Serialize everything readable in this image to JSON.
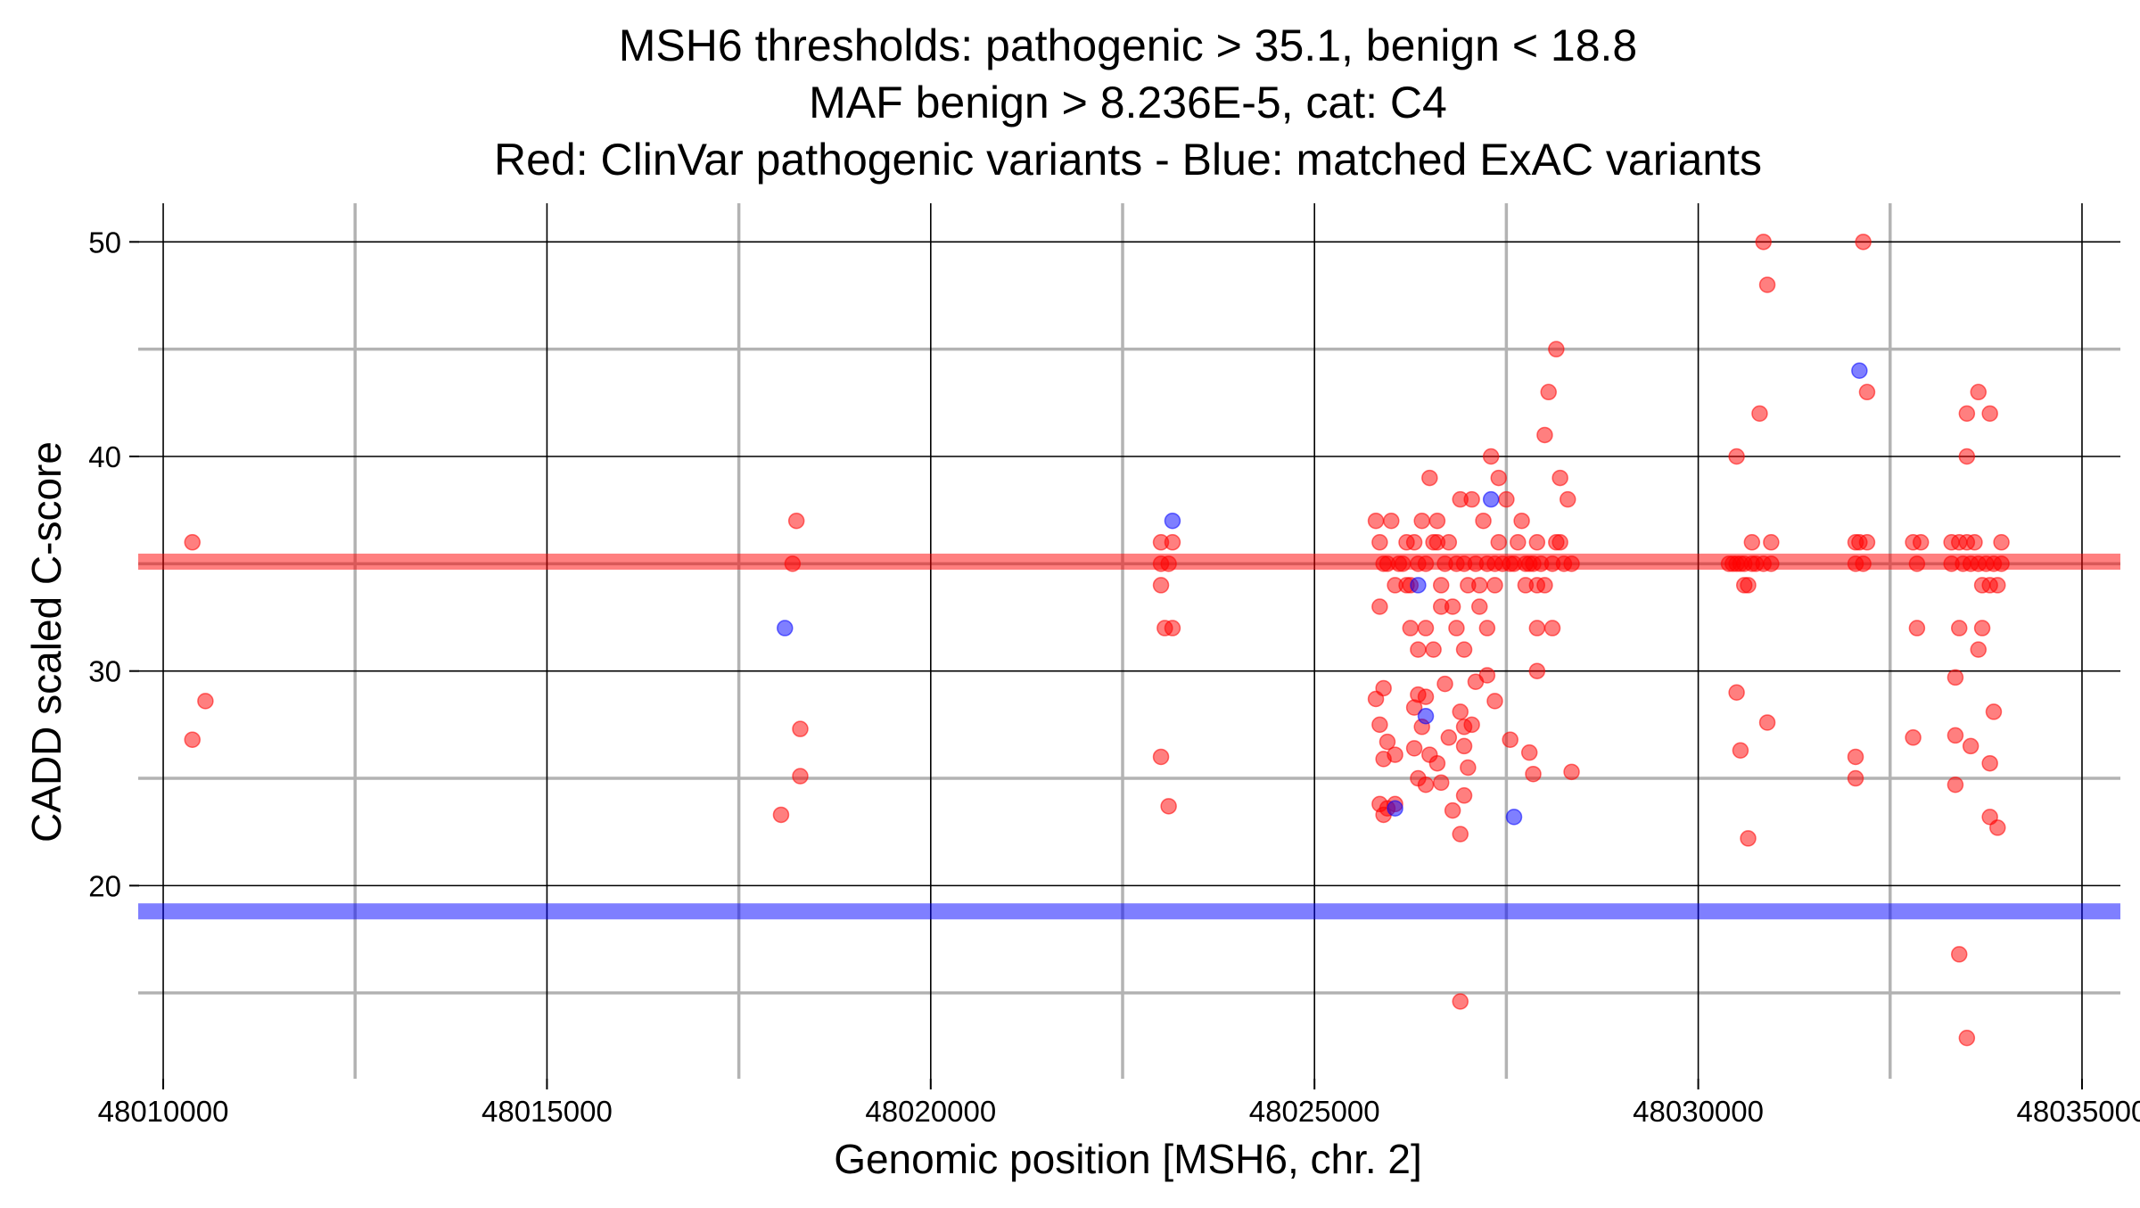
{
  "chart_data": {
    "type": "scatter",
    "title_lines": [
      "MSH6 thresholds: pathogenic > 35.1, benign < 18.8",
      "MAF benign > 8.236E-5, cat: C4",
      "Red: ClinVar pathogenic variants - Blue: matched ExAC variants"
    ],
    "xlabel": "Genomic position [MSH6, chr. 2]",
    "ylabel": "CADD scaled C-score",
    "xlim": [
      48009500,
      48035500
    ],
    "ylim": [
      11.0,
      51.8
    ],
    "x_ticks": [
      48010000,
      48015000,
      48020000,
      48025000,
      48030000,
      48035000
    ],
    "x_tick_labels": [
      "48010000",
      "48015000",
      "48020000",
      "48025000",
      "48030000",
      "48035000"
    ],
    "x_minor_ticks": [
      48012500,
      48017500,
      48022500,
      48027500,
      48032500
    ],
    "y_ticks": [
      20,
      30,
      40,
      50
    ],
    "y_tick_labels": [
      "20",
      "30",
      "40",
      "50"
    ],
    "y_minor_ticks": [
      15,
      25,
      35,
      45
    ],
    "grid": true,
    "thresholds": [
      {
        "name": "pathogenic",
        "value": 35.1,
        "color": "#ff0000"
      },
      {
        "name": "benign",
        "value": 18.8,
        "color": "#0000ff"
      }
    ],
    "colors": {
      "pathogenic": "#ff0000",
      "benign": "#0000ff",
      "major_grid": "#000000",
      "minor_grid": "#b3b3b3"
    },
    "series": [
      {
        "color": "#ff0000",
        "points": [
          [
            48010380,
            36
          ],
          [
            48010380,
            26.8
          ],
          [
            48010550,
            28.6
          ],
          [
            48018050,
            23.3
          ],
          [
            48018250,
            37
          ],
          [
            48018200,
            35
          ],
          [
            48018300,
            27.3
          ],
          [
            48018300,
            25.1
          ],
          [
            48023000,
            36
          ],
          [
            48023000,
            34
          ],
          [
            48023000,
            26
          ],
          [
            48023050,
            32
          ],
          [
            48023100,
            35
          ],
          [
            48023150,
            36
          ],
          [
            48023150,
            32
          ],
          [
            48023100,
            23.7
          ],
          [
            48023000,
            35
          ],
          [
            48025800,
            37
          ],
          [
            48025850,
            36
          ],
          [
            48025900,
            35
          ],
          [
            48025950,
            35
          ],
          [
            48026000,
            37
          ],
          [
            48026100,
            35
          ],
          [
            48026200,
            34
          ],
          [
            48026250,
            34
          ],
          [
            48026300,
            36
          ],
          [
            48026350,
            35
          ],
          [
            48026400,
            37
          ],
          [
            48026450,
            35
          ],
          [
            48026500,
            39
          ],
          [
            48026550,
            36
          ],
          [
            48026600,
            37
          ],
          [
            48026650,
            34
          ],
          [
            48026700,
            35
          ],
          [
            48026750,
            36
          ],
          [
            48026800,
            33
          ],
          [
            48026850,
            35
          ],
          [
            48026900,
            38
          ],
          [
            48026950,
            35
          ],
          [
            48027000,
            34
          ],
          [
            48027050,
            38
          ],
          [
            48027100,
            35
          ],
          [
            48027150,
            34
          ],
          [
            48027200,
            37
          ],
          [
            48027250,
            35
          ],
          [
            48027300,
            40
          ],
          [
            48027350,
            35
          ],
          [
            48027400,
            39
          ],
          [
            48027450,
            35
          ],
          [
            48027500,
            38
          ],
          [
            48027550,
            35
          ],
          [
            48027600,
            35
          ],
          [
            48027650,
            36
          ],
          [
            48027700,
            37
          ],
          [
            48027750,
            35
          ],
          [
            48027800,
            35
          ],
          [
            48027850,
            35
          ],
          [
            48027900,
            34
          ],
          [
            48027950,
            35
          ],
          [
            48028000,
            41
          ],
          [
            48028050,
            43
          ],
          [
            48028100,
            35
          ],
          [
            48028150,
            45
          ],
          [
            48028200,
            39
          ],
          [
            48028250,
            35
          ],
          [
            48028300,
            38
          ],
          [
            48028350,
            35
          ],
          [
            48025850,
            33
          ],
          [
            48026050,
            34
          ],
          [
            48026250,
            32
          ],
          [
            48026350,
            31
          ],
          [
            48026450,
            32
          ],
          [
            48026550,
            31
          ],
          [
            48026650,
            33
          ],
          [
            48026850,
            32
          ],
          [
            48026950,
            31
          ],
          [
            48027150,
            33
          ],
          [
            48027250,
            32
          ],
          [
            48027350,
            34
          ],
          [
            48027750,
            34
          ],
          [
            48027900,
            32
          ],
          [
            48028100,
            32
          ],
          [
            48028000,
            34
          ],
          [
            48027900,
            36
          ],
          [
            48026200,
            36
          ],
          [
            48026600,
            36
          ],
          [
            48027400,
            36
          ],
          [
            48028150,
            36
          ],
          [
            48028200,
            36
          ],
          [
            48026150,
            35
          ],
          [
            48025800,
            28.7
          ],
          [
            48025900,
            29.2
          ],
          [
            48025850,
            27.5
          ],
          [
            48025950,
            26.7
          ],
          [
            48025900,
            25.9
          ],
          [
            48026050,
            26.1
          ],
          [
            48025850,
            23.8
          ],
          [
            48025950,
            23.6
          ],
          [
            48025900,
            23.3
          ],
          [
            48026050,
            23.8
          ],
          [
            48026300,
            26.4
          ],
          [
            48026300,
            28.3
          ],
          [
            48026350,
            28.9
          ],
          [
            48026400,
            27.4
          ],
          [
            48026450,
            28.8
          ],
          [
            48026350,
            25
          ],
          [
            48026450,
            24.7
          ],
          [
            48026500,
            26.1
          ],
          [
            48026600,
            25.7
          ],
          [
            48026650,
            24.8
          ],
          [
            48026700,
            29.4
          ],
          [
            48026750,
            26.9
          ],
          [
            48026800,
            23.5
          ],
          [
            48026900,
            28.1
          ],
          [
            48026950,
            27.4
          ],
          [
            48026950,
            26.5
          ],
          [
            48027000,
            25.5
          ],
          [
            48027050,
            27.5
          ],
          [
            48026900,
            22.4
          ],
          [
            48026950,
            24.2
          ],
          [
            48027100,
            29.5
          ],
          [
            48027250,
            29.8
          ],
          [
            48027350,
            28.6
          ],
          [
            48027550,
            26.8
          ],
          [
            48027800,
            26.2
          ],
          [
            48027850,
            25.2
          ],
          [
            48027900,
            30
          ],
          [
            48028350,
            25.3
          ],
          [
            48026900,
            14.6
          ],
          [
            48030500,
            40
          ],
          [
            48030500,
            29
          ],
          [
            48030550,
            26.3
          ],
          [
            48030600,
            34
          ],
          [
            48030650,
            34
          ],
          [
            48030700,
            36
          ],
          [
            48030800,
            42
          ],
          [
            48030850,
            50
          ],
          [
            48030900,
            48
          ],
          [
            48030900,
            27.6
          ],
          [
            48030650,
            22.2
          ],
          [
            48030400,
            35
          ],
          [
            48030450,
            35
          ],
          [
            48030500,
            35
          ],
          [
            48030550,
            35
          ],
          [
            48030600,
            35
          ],
          [
            48030700,
            35
          ],
          [
            48030750,
            35
          ],
          [
            48030850,
            35
          ],
          [
            48030950,
            35
          ],
          [
            48030950,
            36
          ],
          [
            48032050,
            36
          ],
          [
            48032100,
            36
          ],
          [
            48032200,
            36
          ],
          [
            48032050,
            35
          ],
          [
            48032150,
            35
          ],
          [
            48032050,
            26
          ],
          [
            48032050,
            25
          ],
          [
            48032150,
            50
          ],
          [
            48032200,
            43
          ],
          [
            48032800,
            36
          ],
          [
            48032900,
            36
          ],
          [
            48032850,
            35
          ],
          [
            48032850,
            32
          ],
          [
            48032800,
            26.9
          ],
          [
            48033300,
            36
          ],
          [
            48033400,
            36
          ],
          [
            48033500,
            36
          ],
          [
            48033600,
            36
          ],
          [
            48033300,
            35
          ],
          [
            48033450,
            35
          ],
          [
            48033550,
            35
          ],
          [
            48033650,
            35
          ],
          [
            48033750,
            35
          ],
          [
            48033850,
            35
          ],
          [
            48033950,
            35
          ],
          [
            48033400,
            32
          ],
          [
            48033700,
            32
          ],
          [
            48033500,
            40
          ],
          [
            48033500,
            42
          ],
          [
            48033650,
            43
          ],
          [
            48033800,
            42
          ],
          [
            48033700,
            34
          ],
          [
            48033800,
            34
          ],
          [
            48033900,
            34
          ],
          [
            48033950,
            36
          ],
          [
            48033350,
            29.7
          ],
          [
            48033350,
            27
          ],
          [
            48033550,
            26.5
          ],
          [
            48033800,
            25.7
          ],
          [
            48033350,
            24.7
          ],
          [
            48033800,
            23.2
          ],
          [
            48033900,
            22.7
          ],
          [
            48033850,
            28.1
          ],
          [
            48033650,
            31
          ],
          [
            48033400,
            16.8
          ],
          [
            48033500,
            12.9
          ]
        ]
      },
      {
        "color": "#0000ff",
        "points": [
          [
            48018100,
            32
          ],
          [
            48023150,
            37
          ],
          [
            48026350,
            34
          ],
          [
            48026450,
            27.9
          ],
          [
            48026050,
            23.6
          ],
          [
            48027300,
            38
          ],
          [
            48027600,
            23.2
          ],
          [
            48032100,
            44
          ]
        ]
      }
    ]
  }
}
